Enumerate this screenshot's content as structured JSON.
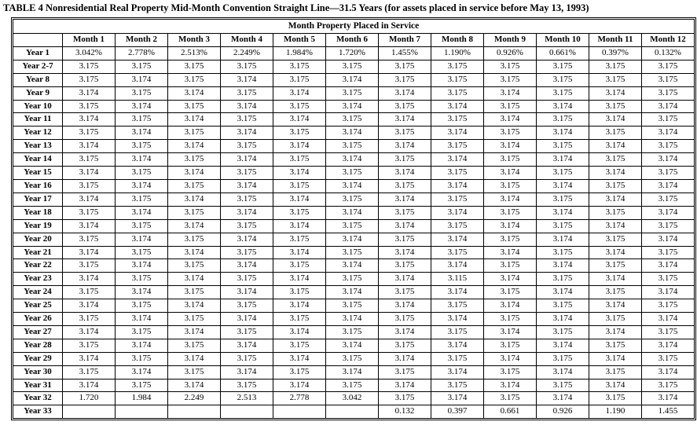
{
  "title": "TABLE 4 Nonresidential Real Property Mid-Month Convention Straight Line—31.5 Years (for assets placed in service before May 13, 1993)",
  "table": {
    "span_header": "Month Property Placed in Service",
    "columns": [
      "Month 1",
      "Month 2",
      "Month 3",
      "Month 4",
      "Month 5",
      "Month 6",
      "Month 7",
      "Month 8",
      "Month 9",
      "Month 10",
      "Month 11",
      "Month 12"
    ],
    "rows": [
      {
        "label": "Year 1",
        "values": [
          "3.042%",
          "2.778%",
          "2.513%",
          "2.249%",
          "1.984%",
          "1.720%",
          "1.455%",
          "1.190%",
          "0.926%",
          "0.661%",
          "0.397%",
          "0.132%"
        ]
      },
      {
        "label": "Year 2-7",
        "values": [
          "3.175",
          "3.175",
          "3.175",
          "3.175",
          "3.175",
          "3.175",
          "3.175",
          "3.175",
          "3.175",
          "3.175",
          "3.175",
          "3.175"
        ]
      },
      {
        "label": "Year 8",
        "values": [
          "3.175",
          "3.174",
          "3.175",
          "3.174",
          "3.175",
          "3.174",
          "3.175",
          "3.175",
          "3.175",
          "3.175",
          "3.175",
          "3.175"
        ]
      },
      {
        "label": "Year 9",
        "values": [
          "3.174",
          "3.175",
          "3.174",
          "3.175",
          "3.174",
          "3.175",
          "3.174",
          "3.175",
          "3.174",
          "3.175",
          "3.174",
          "3.175"
        ]
      },
      {
        "label": "Year 10",
        "values": [
          "3.175",
          "3.174",
          "3.175",
          "3.174",
          "3.175",
          "3.174",
          "3.175",
          "3.174",
          "3.175",
          "3.174",
          "3.175",
          "3.174"
        ]
      },
      {
        "label": "Year 11",
        "values": [
          "3.174",
          "3.175",
          "3.174",
          "3.175",
          "3.174",
          "3.175",
          "3.174",
          "3.175",
          "3.174",
          "3.175",
          "3.174",
          "3.175"
        ]
      },
      {
        "label": "Year 12",
        "values": [
          "3.175",
          "3.174",
          "3.175",
          "3.174",
          "3.175",
          "3.174",
          "3.175",
          "3.174",
          "3.175",
          "3.174",
          "3.175",
          "3.174"
        ]
      },
      {
        "label": "Year 13",
        "values": [
          "3.174",
          "3.175",
          "3.174",
          "3.175",
          "3.174",
          "3.175",
          "3.174",
          "3.175",
          "3.174",
          "3.175",
          "3.174",
          "3.175"
        ]
      },
      {
        "label": "Year 14",
        "values": [
          "3.175",
          "3.174",
          "3.175",
          "3.174",
          "3.175",
          "3.174",
          "3.175",
          "3.174",
          "3.175",
          "3.174",
          "3.175",
          "3.174"
        ]
      },
      {
        "label": "Year 15",
        "values": [
          "3.174",
          "3.175",
          "3.174",
          "3.175",
          "3.174",
          "3.175",
          "3.174",
          "3.175",
          "3.174",
          "3.175",
          "3.174",
          "3.175"
        ]
      },
      {
        "label": "Year 16",
        "values": [
          "3.175",
          "3.174",
          "3.175",
          "3.174",
          "3.175",
          "3.174",
          "3.175",
          "3.174",
          "3.175",
          "3.174",
          "3.175",
          "3.174"
        ]
      },
      {
        "label": "Year 17",
        "values": [
          "3.174",
          "3.175",
          "3.174",
          "3.175",
          "3.174",
          "3.175",
          "3.174",
          "3.175",
          "3.174",
          "3.175",
          "3.174",
          "3.175"
        ]
      },
      {
        "label": "Year 18",
        "values": [
          "3.175",
          "3.174",
          "3.175",
          "3.174",
          "3.175",
          "3.174",
          "3.175",
          "3.174",
          "3.175",
          "3.174",
          "3.175",
          "3.174"
        ]
      },
      {
        "label": "Year 19",
        "values": [
          "3.174",
          "3.175",
          "3.174",
          "3.175",
          "3.174",
          "3.175",
          "3.174",
          "3.175",
          "3.174",
          "3.175",
          "3.174",
          "3.175"
        ]
      },
      {
        "label": "Year 20",
        "values": [
          "3.175",
          "3.174",
          "3.175",
          "3.174",
          "3.175",
          "3.174",
          "3.175",
          "3.174",
          "3.175",
          "3.174",
          "3.175",
          "3.174"
        ]
      },
      {
        "label": "Year 21",
        "values": [
          "3.174",
          "3.175",
          "3.174",
          "3.175",
          "3.174",
          "3.175",
          "3.174",
          "3.175",
          "3.174",
          "3.175",
          "3.174",
          "3.175"
        ]
      },
      {
        "label": "Year 22",
        "values": [
          "3.175",
          "3.174",
          "3.175",
          "3.174",
          "3.175",
          "3.174",
          "3.175",
          "3.174",
          "3.175",
          "3.174",
          "3.175",
          "3.174"
        ]
      },
      {
        "label": "Year 23",
        "values": [
          "3.174",
          "3.175",
          "3.174",
          "3.175",
          "3.174",
          "3.175",
          "3.174",
          "3.115",
          "3.174",
          "3.175",
          "3.174",
          "3.175"
        ]
      },
      {
        "label": "Year 24",
        "values": [
          "3.175",
          "3.174",
          "3.175",
          "3.174",
          "3.175",
          "3.174",
          "3.175",
          "3.174",
          "3.175",
          "3.174",
          "3.175",
          "3.174"
        ]
      },
      {
        "label": "Year 25",
        "values": [
          "3.174",
          "3.175",
          "3.174",
          "3.175",
          "3.174",
          "3.175",
          "3.174",
          "3.175",
          "3.174",
          "3.175",
          "3.174",
          "3.175"
        ]
      },
      {
        "label": "Year 26",
        "values": [
          "3.175",
          "3.174",
          "3.175",
          "3.174",
          "3.175",
          "3.174",
          "3.175",
          "3.174",
          "3.175",
          "3.174",
          "3.175",
          "3.174"
        ]
      },
      {
        "label": "Year 27",
        "values": [
          "3.174",
          "3.175",
          "3.174",
          "3.175",
          "3.174",
          "3.175",
          "3.174",
          "3.175",
          "3.174",
          "3.175",
          "3.174",
          "3.175"
        ]
      },
      {
        "label": "Year 28",
        "values": [
          "3.175",
          "3.174",
          "3.175",
          "3.174",
          "3.175",
          "3.174",
          "3.175",
          "3.174",
          "3.175",
          "3.174",
          "3.175",
          "3.174"
        ]
      },
      {
        "label": "Year 29",
        "values": [
          "3.174",
          "3.175",
          "3.174",
          "3.175",
          "3.174",
          "3.175",
          "3.174",
          "3.175",
          "3.174",
          "3.175",
          "3.174",
          "3.175"
        ]
      },
      {
        "label": "Year 30",
        "values": [
          "3.175",
          "3.174",
          "3.175",
          "3.174",
          "3.175",
          "3.174",
          "3.175",
          "3.174",
          "3.175",
          "3.174",
          "3.175",
          "3.174"
        ]
      },
      {
        "label": "Year 31",
        "values": [
          "3.174",
          "3.175",
          "3.174",
          "3.175",
          "3.174",
          "3.175",
          "3.174",
          "3.175",
          "3.174",
          "3.175",
          "3.174",
          "3.175"
        ]
      },
      {
        "label": "Year 32",
        "values": [
          "1.720",
          "1.984",
          "2.249",
          "2.513",
          "2.778",
          "3.042",
          "3.175",
          "3.174",
          "3.175",
          "3.174",
          "3.175",
          "3.174"
        ]
      },
      {
        "label": "Year 33",
        "values": [
          "",
          "",
          "",
          "",
          "",
          "",
          "0.132",
          "0.397",
          "0.661",
          "0.926",
          "1.190",
          "1.455"
        ]
      }
    ]
  }
}
